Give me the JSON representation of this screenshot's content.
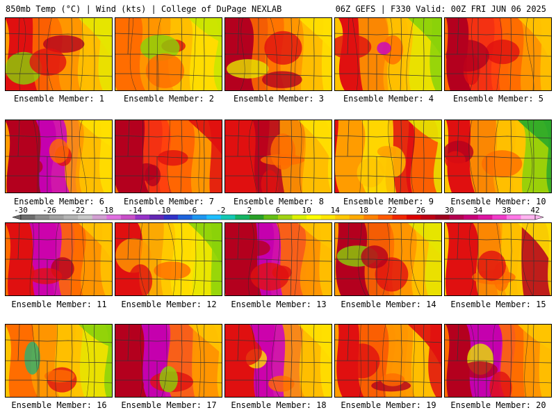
{
  "header": {
    "left": "850mb Temp (°C) | Wind (kts) | College of DuPage NEXLAB",
    "right": "06Z GEFS | F330 Valid: 00Z FRI JUN 06 2025"
  },
  "members": [
    {
      "label": "Ensemble Member: 1",
      "palette": [
        "#e01010",
        "#b4001e",
        "#ff6d00",
        "#ff9c00",
        "#ffc400",
        "#e6e600",
        "#8ad20a"
      ]
    },
    {
      "label": "Ensemble Member: 2",
      "palette": [
        "#ff6d00",
        "#e01010",
        "#ff9c00",
        "#ffc400",
        "#ffe000",
        "#c8e600",
        "#8ad20a"
      ]
    },
    {
      "label": "Ensemble Member: 3",
      "palette": [
        "#b4001e",
        "#e01010",
        "#ff6d00",
        "#ff9c00",
        "#ffc400",
        "#ffe000",
        "#e6e600"
      ]
    },
    {
      "label": "Ensemble Member: 4",
      "palette": [
        "#e01010",
        "#ff6d00",
        "#ff9c00",
        "#ffc400",
        "#e6e600",
        "#8ad20a",
        "#c800c8"
      ]
    },
    {
      "label": "Ensemble Member: 5",
      "palette": [
        "#b4001e",
        "#e01010",
        "#ff3a10",
        "#ff6d00",
        "#ff9c00",
        "#ffc400",
        "#e01010"
      ]
    },
    {
      "label": "Ensemble Member: 6",
      "palette": [
        "#b4001e",
        "#e01010",
        "#c800c8",
        "#ff9c00",
        "#ffc400",
        "#ffe000",
        "#ff6d00"
      ]
    },
    {
      "label": "Ensemble Member: 7",
      "palette": [
        "#b4001e",
        "#e01010",
        "#ff3a10",
        "#ff6d00",
        "#ff9c00",
        "#e01010",
        "#b4001e"
      ]
    },
    {
      "label": "Ensemble Member: 8",
      "palette": [
        "#e01010",
        "#ff6d00",
        "#b4001e",
        "#ff9c00",
        "#ffc400",
        "#ffe000",
        "#ff6d00"
      ]
    },
    {
      "label": "Ensemble Member: 9",
      "palette": [
        "#ff9c00",
        "#ffc400",
        "#ffe000",
        "#e01010",
        "#ff6d00",
        "#e6e600",
        "#ffc400"
      ]
    },
    {
      "label": "Ensemble Member: 10",
      "palette": [
        "#e01010",
        "#ff6d00",
        "#ff9c00",
        "#ffc400",
        "#8ad20a",
        "#2ba82b",
        "#b4001e"
      ]
    },
    {
      "label": "Ensemble Member: 11",
      "palette": [
        "#e01010",
        "#b4001e",
        "#c800c8",
        "#ff6d00",
        "#ff9c00",
        "#ffc400",
        "#e01010"
      ]
    },
    {
      "label": "Ensemble Member: 12",
      "palette": [
        "#e01010",
        "#ff6d00",
        "#ffc400",
        "#ffe000",
        "#e6e600",
        "#8ad20a",
        "#ff9c00"
      ]
    },
    {
      "label": "Ensemble Member: 13",
      "palette": [
        "#b4001e",
        "#e01010",
        "#c800c8",
        "#ff6d00",
        "#ff9c00",
        "#ffc400",
        "#e01010"
      ]
    },
    {
      "label": "Ensemble Member: 14",
      "palette": [
        "#b4001e",
        "#e01010",
        "#ff6d00",
        "#ff9c00",
        "#ffc400",
        "#e6e600",
        "#8ad20a"
      ]
    },
    {
      "label": "Ensemble Member: 15",
      "palette": [
        "#e01010",
        "#ff6d00",
        "#ff9c00",
        "#ffc400",
        "#b4001e",
        "#ffe000",
        "#ff6d00"
      ]
    },
    {
      "label": "Ensemble Member: 16",
      "palette": [
        "#ff6d00",
        "#e01010",
        "#ff9c00",
        "#ffc400",
        "#e6e600",
        "#8ad20a",
        "#2bb070"
      ]
    },
    {
      "label": "Ensemble Member: 17",
      "palette": [
        "#b4001e",
        "#e01010",
        "#c800c8",
        "#ff6d00",
        "#ff9c00",
        "#ffc400",
        "#8ad20a"
      ]
    },
    {
      "label": "Ensemble Member: 18",
      "palette": [
        "#e01010",
        "#ff6d00",
        "#c800c8",
        "#ff9c00",
        "#ffc400",
        "#ffe000",
        "#ffe000"
      ]
    },
    {
      "label": "Ensemble Member: 19",
      "palette": [
        "#e01010",
        "#b4001e",
        "#ff6d00",
        "#ff9c00",
        "#ffc400",
        "#e01010",
        "#ff6d00"
      ]
    },
    {
      "label": "Ensemble Member: 20",
      "palette": [
        "#b4001e",
        "#e01010",
        "#c800c8",
        "#ff6d00",
        "#ff9c00",
        "#ffc400",
        "#e6e600"
      ]
    }
  ],
  "colorbar": {
    "labels": [
      "-30",
      "-26",
      "-22",
      "-18",
      "-14",
      "-10",
      "-6",
      "-2",
      "2",
      "6",
      "10",
      "14",
      "18",
      "22",
      "26",
      "30",
      "34",
      "38",
      "42"
    ],
    "colors": [
      "#6e6e6e",
      "#8c8c8c",
      "#a0a0a0",
      "#b4b4b4",
      "#c8c8c8",
      "#d2a0d2",
      "#e070e0",
      "#c850c8",
      "#9632c8",
      "#6428b4",
      "#3232c8",
      "#1e64dc",
      "#1e96f0",
      "#1ebeff",
      "#14c8b4",
      "#14b464",
      "#28a028",
      "#64be14",
      "#a0d214",
      "#dcf000",
      "#ffff00",
      "#ffe600",
      "#ffc800",
      "#ffaa00",
      "#ff8200",
      "#ff5a00",
      "#f02800",
      "#dc0000",
      "#be0014",
      "#a0001e",
      "#b40050",
      "#c80078",
      "#dc14a0",
      "#f03cc8",
      "#ff78e6",
      "#ffb4f0"
    ]
  }
}
